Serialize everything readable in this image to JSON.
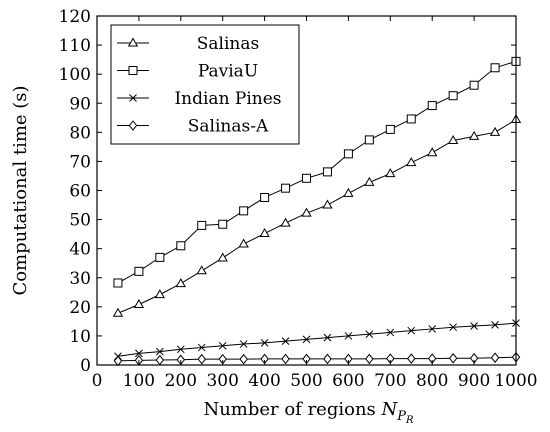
{
  "chart_data": {
    "type": "line",
    "title": "",
    "xlabel": "Number of regions",
    "xlabel_symbol": "N",
    "xlabel_sub": "P",
    "xlabel_subsub": "R",
    "ylabel": "Computational time (s)",
    "xlim": [
      0,
      1000
    ],
    "ylim": [
      0,
      120
    ],
    "xticks": [
      0,
      100,
      200,
      300,
      400,
      500,
      600,
      700,
      800,
      900,
      1000
    ],
    "yticks": [
      0,
      10,
      20,
      30,
      40,
      50,
      60,
      70,
      80,
      90,
      100,
      110,
      120
    ],
    "grid": false,
    "legend_position": "top-left",
    "x": [
      50,
      100,
      150,
      200,
      250,
      300,
      350,
      400,
      450,
      500,
      550,
      600,
      650,
      700,
      750,
      800,
      850,
      900,
      950,
      1000
    ],
    "series": [
      {
        "name": "Salinas",
        "marker": "triangle",
        "values": [
          17.8,
          20.8,
          24.2,
          28.0,
          32.4,
          36.8,
          41.6,
          45.2,
          48.8,
          52.2,
          55.0,
          59.0,
          62.8,
          65.8,
          69.6,
          73.0,
          77.2,
          78.6,
          80.0,
          84.4
        ]
      },
      {
        "name": "PaviaU",
        "marker": "square",
        "values": [
          28.2,
          32.2,
          37.0,
          41.0,
          48.0,
          48.4,
          53.0,
          57.6,
          60.8,
          64.2,
          66.4,
          72.6,
          77.4,
          81.0,
          84.6,
          89.2,
          92.6,
          96.2,
          102.2,
          104.4
        ]
      },
      {
        "name": "Indian Pines",
        "marker": "x",
        "values": [
          3.0,
          4.0,
          4.6,
          5.4,
          6.0,
          6.6,
          7.2,
          7.6,
          8.2,
          8.8,
          9.4,
          10.0,
          10.6,
          11.2,
          11.8,
          12.4,
          13.0,
          13.4,
          13.8,
          14.4
        ]
      },
      {
        "name": "Salinas-A",
        "marker": "diamond",
        "values": [
          1.4,
          1.6,
          1.7,
          1.8,
          2.0,
          2.0,
          2.0,
          2.1,
          2.1,
          2.1,
          2.1,
          2.1,
          2.1,
          2.2,
          2.2,
          2.2,
          2.3,
          2.3,
          2.5,
          2.7
        ]
      }
    ]
  }
}
